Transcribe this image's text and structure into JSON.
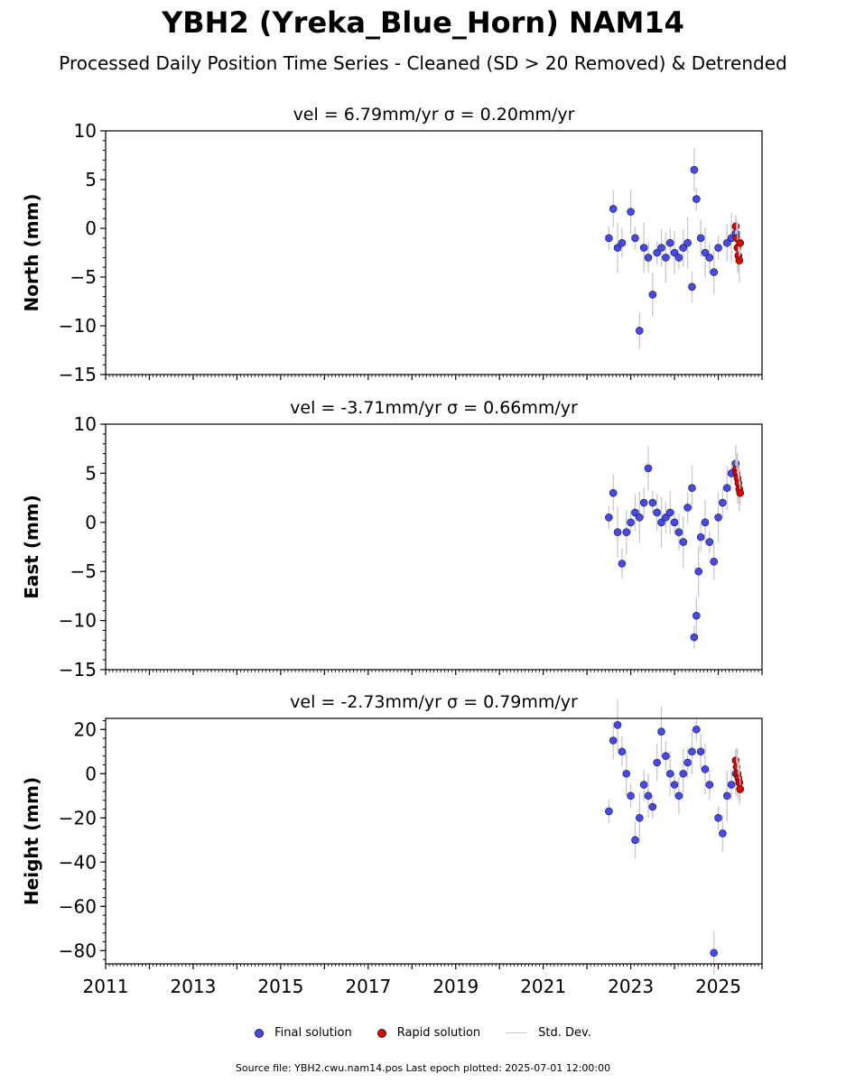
{
  "title": "YBH2 (Yreka_Blue_Horn) NAM14",
  "subtitle": "Processed Daily Position Time Series - Cleaned (SD > 20 Removed) & Detrended",
  "colors": {
    "final": "#4848f0",
    "rapid": "#e00000",
    "stddev": "#c8c8c8"
  },
  "legend": {
    "final": "Final solution",
    "rapid": "Rapid solution",
    "stddev": "Std. Dev."
  },
  "footer": "Source file: YBH2.cwu.nam14.pos  Last epoch plotted: 2025-07-01 12:00:00",
  "chart_data": [
    {
      "type": "scatter",
      "title": "vel = 6.79mm/yr   σ = 0.20mm/yr",
      "ylabel": "North (mm)",
      "xlim": [
        2011,
        2026
      ],
      "ylim": [
        -15,
        10
      ],
      "yticks": [
        10,
        5,
        0,
        -5,
        -10,
        -15
      ],
      "ytick_labels": [
        "10",
        "5",
        "0",
        "−5",
        "−10",
        "−15"
      ],
      "grid": false,
      "series": [
        {
          "name": "Final solution",
          "x": [
            2022.5,
            2022.6,
            2022.7,
            2022.8,
            2023.0,
            2023.1,
            2023.2,
            2023.3,
            2023.4,
            2023.5,
            2023.6,
            2023.7,
            2023.8,
            2023.9,
            2024.0,
            2024.1,
            2024.2,
            2024.3,
            2024.4,
            2024.45,
            2024.5,
            2024.6,
            2024.7,
            2024.8,
            2024.9,
            2025.0,
            2025.2,
            2025.3,
            2025.4
          ],
          "y": [
            -1.0,
            2.0,
            -2.0,
            -1.5,
            1.7,
            -1.0,
            -10.5,
            -2.0,
            -3.0,
            -6.8,
            -2.5,
            -2.0,
            -3.0,
            -1.5,
            -2.5,
            -3.0,
            -2.0,
            -1.5,
            -6.0,
            6.0,
            3.0,
            -1.0,
            -2.5,
            -3.0,
            -4.5,
            -2.0,
            -1.5,
            -1.0,
            -0.5
          ]
        },
        {
          "name": "Rapid solution",
          "x": [
            2025.4,
            2025.42,
            2025.44,
            2025.46,
            2025.48,
            2025.5
          ],
          "y": [
            0.2,
            -1.0,
            -2.0,
            -2.8,
            -3.3,
            -1.5
          ]
        }
      ]
    },
    {
      "type": "scatter",
      "title": "vel = -3.71mm/yr   σ = 0.66mm/yr",
      "ylabel": "East (mm)",
      "xlim": [
        2011,
        2026
      ],
      "ylim": [
        -15,
        10
      ],
      "yticks": [
        10,
        5,
        0,
        -5,
        -10,
        -15
      ],
      "ytick_labels": [
        "10",
        "5",
        "0",
        "−5",
        "−10",
        "−15"
      ],
      "grid": false,
      "series": [
        {
          "name": "Final solution",
          "x": [
            2022.5,
            2022.6,
            2022.7,
            2022.8,
            2022.9,
            2023.0,
            2023.1,
            2023.2,
            2023.3,
            2023.4,
            2023.5,
            2023.6,
            2023.7,
            2023.8,
            2023.9,
            2024.0,
            2024.1,
            2024.2,
            2024.3,
            2024.4,
            2024.45,
            2024.5,
            2024.55,
            2024.6,
            2024.7,
            2024.8,
            2024.9,
            2025.0,
            2025.1,
            2025.2,
            2025.3,
            2025.4
          ],
          "y": [
            0.5,
            3.0,
            -1.0,
            -4.2,
            -1.0,
            0.0,
            1.0,
            0.5,
            2.0,
            5.5,
            2.0,
            1.0,
            0.0,
            0.5,
            1.0,
            0.0,
            -1.0,
            -2.0,
            1.5,
            3.5,
            -11.7,
            -9.5,
            -5.0,
            -1.5,
            0.0,
            -2.0,
            -4.0,
            0.5,
            2.0,
            3.5,
            5.0,
            6.0
          ]
        },
        {
          "name": "Rapid solution",
          "x": [
            2025.4,
            2025.42,
            2025.44,
            2025.46,
            2025.48,
            2025.5
          ],
          "y": [
            5.4,
            5.0,
            4.5,
            4.0,
            3.4,
            3.0
          ]
        }
      ]
    },
    {
      "type": "scatter",
      "title": "vel = -2.73mm/yr   σ = 0.79mm/yr",
      "ylabel": "Height (mm)",
      "xlim": [
        2011,
        2026
      ],
      "ylim": [
        -86,
        25
      ],
      "yticks": [
        20,
        0,
        -20,
        -40,
        -60,
        -80
      ],
      "ytick_labels": [
        "20",
        "0",
        "−20",
        "−40",
        "−60",
        "−80"
      ],
      "xticks": [
        2011,
        2013,
        2015,
        2017,
        2019,
        2021,
        2023,
        2025
      ],
      "xtick_labels": [
        "2011",
        "2013",
        "2015",
        "2017",
        "2019",
        "2021",
        "2023",
        "2025"
      ],
      "grid": false,
      "series": [
        {
          "name": "Final solution",
          "x": [
            2022.5,
            2022.6,
            2022.7,
            2022.8,
            2022.9,
            2023.0,
            2023.1,
            2023.2,
            2023.3,
            2023.4,
            2023.5,
            2023.6,
            2023.7,
            2023.8,
            2023.9,
            2024.0,
            2024.1,
            2024.2,
            2024.3,
            2024.4,
            2024.5,
            2024.6,
            2024.7,
            2024.8,
            2024.9,
            2025.0,
            2025.1,
            2025.2,
            2025.3,
            2025.4
          ],
          "y": [
            -17.0,
            15.0,
            22.0,
            10.0,
            0.0,
            -10.0,
            -30.0,
            -20.0,
            -5.0,
            -10.0,
            -15.0,
            5.0,
            19.0,
            8.0,
            0.0,
            -5.0,
            -10.0,
            0.0,
            5.0,
            10.0,
            20.0,
            10.0,
            2.0,
            -5.0,
            -81.0,
            -20.0,
            -27.0,
            -10.0,
            -5.0,
            0.0
          ]
        },
        {
          "name": "Rapid solution",
          "x": [
            2025.4,
            2025.42,
            2025.44,
            2025.46,
            2025.48,
            2025.5
          ],
          "y": [
            6.0,
            3.0,
            0.0,
            -2.0,
            -4.0,
            -7.0
          ]
        }
      ]
    }
  ]
}
